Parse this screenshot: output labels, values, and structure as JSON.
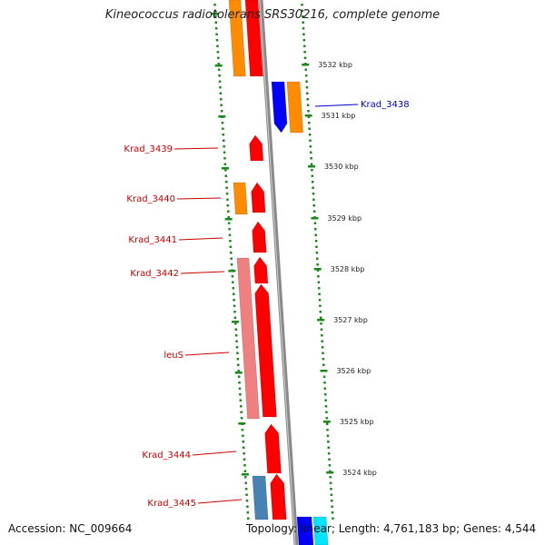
{
  "title": "Kineococcus radiotolerans SRS30216, complete genome",
  "accession_text": "Accession: NC_009664",
  "summary_text": "Topology: linear; Length: 4,761,183 bp; Genes: 4,544",
  "colors": {
    "backbone": "#8a8a8a",
    "ruler_ticks": "#1a8a1a",
    "feature_red": "#ff0000",
    "feature_orange": "#ff8c00",
    "feature_blue": "#0000ff",
    "feature_pink": "#f08080",
    "feature_steelblue": "#4682b4",
    "feature_cyan": "#00e5ff",
    "label_red": "#cc0000",
    "label_blue": "#0000cc"
  },
  "ruler": {
    "labels": [
      "3532 kbp",
      "3531 kbp",
      "3530 kbp",
      "3529 kbp",
      "3528 kbp",
      "3527 kbp",
      "3526 kbp",
      "3525 kbp",
      "3524 kbp"
    ]
  },
  "gene_labels": [
    {
      "text": "Krad_3438",
      "color": "blue"
    },
    {
      "text": "Krad_3439",
      "color": "red"
    },
    {
      "text": "Krad_3440",
      "color": "red"
    },
    {
      "text": "Krad_3441",
      "color": "red"
    },
    {
      "text": "Krad_3442",
      "color": "red"
    },
    {
      "text": "leuS",
      "color": "red"
    },
    {
      "text": "Krad_3444",
      "color": "red"
    },
    {
      "text": "Krad_3445",
      "color": "red"
    }
  ]
}
